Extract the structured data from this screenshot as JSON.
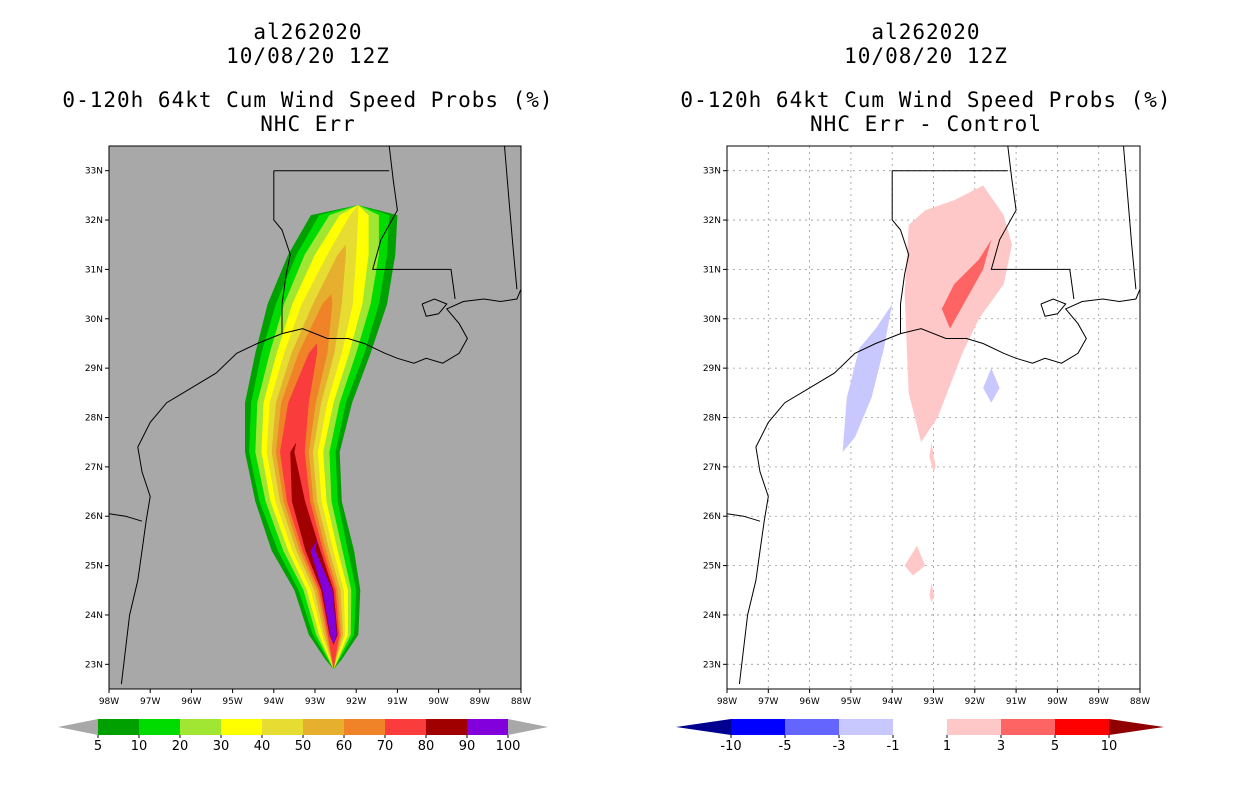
{
  "left_panel": {
    "title_line1": "al262020",
    "title_line2": "10/08/20 12Z",
    "title_line3": "0-120h 64kt Cum Wind Speed Probs (%)",
    "title_line4": "NHC Err"
  },
  "right_panel": {
    "title_line1": "al262020",
    "title_line2": "10/08/20 12Z",
    "title_line3": "0-120h 64kt Cum Wind Speed Probs (%)",
    "title_line4": "NHC Err - Control"
  },
  "chart_data": [
    {
      "type": "heatmap",
      "title": "0-120h 64kt Cum Wind Speed Probs (%) NHC Err",
      "xlim": [
        -98,
        -88
      ],
      "ylim": [
        22.5,
        33.5
      ],
      "x_ticks": [
        "98W",
        "97W",
        "96W",
        "95W",
        "94W",
        "93W",
        "92W",
        "91W",
        "90W",
        "89W",
        "88W"
      ],
      "y_ticks": [
        "23N",
        "24N",
        "25N",
        "26N",
        "27N",
        "28N",
        "29N",
        "30N",
        "31N",
        "32N",
        "33N"
      ],
      "background": "#a8a8a8",
      "levels": [
        5,
        10,
        20,
        30,
        40,
        50,
        60,
        70,
        80,
        90,
        100
      ],
      "level_labels": [
        "5",
        "10",
        "20",
        "30",
        "40",
        "50",
        "60",
        "70",
        "80",
        "90",
        "100"
      ],
      "colors": [
        "#00a000",
        "#00dc00",
        "#a0e632",
        "#ffff00",
        "#e6dc32",
        "#e6af2d",
        "#f08228",
        "#fa3c3c",
        "#a00000",
        "#8200dc"
      ],
      "track": {
        "lat": [
          23.1,
          23.6,
          24.5,
          25.3,
          26.3,
          27.3,
          28.3,
          29.3,
          30.3,
          31.3,
          32.1
        ],
        "lon": [
          -92.55,
          -92.55,
          -92.7,
          -93.05,
          -93.4,
          -93.55,
          -93.4,
          -93.05,
          -92.7,
          -92.35,
          -92.05
        ],
        "widths_deg": [
          [
            0.2,
            0.6,
            0.8,
            1.0,
            1.05,
            1.15,
            1.3,
            1.4,
            1.45,
            1.3,
            1.05
          ],
          [
            0.15,
            0.5,
            0.7,
            0.85,
            0.95,
            1.05,
            1.15,
            1.25,
            1.25,
            1.1,
            0.85
          ],
          [
            0.12,
            0.42,
            0.58,
            0.72,
            0.8,
            0.9,
            1.0,
            1.05,
            1.05,
            0.9,
            0.6
          ],
          [
            0.1,
            0.35,
            0.5,
            0.6,
            0.68,
            0.75,
            0.85,
            0.88,
            0.85,
            0.65,
            0.35
          ],
          [
            0.08,
            0.28,
            0.4,
            0.5,
            0.56,
            0.62,
            0.7,
            0.7,
            0.62,
            0.35,
            0.1
          ],
          [
            0.06,
            0.23,
            0.32,
            0.4,
            0.45,
            0.5,
            0.55,
            0.52,
            0.35,
            0.1,
            0.0
          ],
          [
            0.05,
            0.18,
            0.25,
            0.32,
            0.36,
            0.4,
            0.42,
            0.35,
            0.12,
            0.0,
            0.0
          ],
          [
            0.04,
            0.14,
            0.2,
            0.25,
            0.28,
            0.3,
            0.25,
            0.1,
            0.0,
            0.0,
            0.0
          ],
          [
            0.0,
            0.1,
            0.15,
            0.18,
            0.16,
            0.05,
            0.0,
            0.0,
            0.0,
            0.0,
            0.0
          ],
          [
            0.0,
            0.08,
            0.12,
            0.06,
            0.0,
            0.0,
            0.0,
            0.0,
            0.0,
            0.0,
            0.0
          ]
        ]
      }
    },
    {
      "type": "heatmap",
      "title": "0-120h 64kt Cum Wind Speed Probs (%) NHC Err - Control",
      "xlim": [
        -98,
        -88
      ],
      "ylim": [
        22.5,
        33.5
      ],
      "x_ticks": [
        "98W",
        "97W",
        "96W",
        "95W",
        "94W",
        "93W",
        "92W",
        "91W",
        "90W",
        "89W",
        "88W"
      ],
      "y_ticks": [
        "23N",
        "24N",
        "25N",
        "26N",
        "27N",
        "28N",
        "29N",
        "30N",
        "31N",
        "32N",
        "33N"
      ],
      "background": "#ffffff",
      "levels": [
        -10,
        -5,
        -3,
        -1,
        1,
        3,
        5,
        10
      ],
      "level_labels": [
        "-10",
        "-5",
        "-3",
        "-1",
        "1",
        "3",
        "5",
        "10"
      ],
      "colors": [
        "#000090",
        "#0000ff",
        "#6464ff",
        "#c8c8ff",
        "#ffffff",
        "#ffc8c8",
        "#ff6464",
        "#ff0000",
        "#900000"
      ],
      "regions": [
        {
          "level": 1,
          "lon": [
            -93.6,
            -93.2,
            -92.5,
            -91.8,
            -91.3,
            -91.1,
            -91.3,
            -91.9,
            -92.3,
            -92.9,
            -93.3,
            -93.6,
            -93.7
          ],
          "lat": [
            31.9,
            32.2,
            32.4,
            32.7,
            32.1,
            31.5,
            30.7,
            30.0,
            29.3,
            28.0,
            27.5,
            28.5,
            30.5
          ]
        },
        {
          "level": 3,
          "lon": [
            -92.5,
            -91.9,
            -91.6,
            -91.8,
            -92.2,
            -92.6,
            -92.8
          ],
          "lat": [
            30.7,
            31.2,
            31.6,
            31.0,
            30.4,
            29.8,
            30.2
          ]
        },
        {
          "level": 1,
          "lon": [
            -93.05,
            -92.95,
            -93.0,
            -93.1
          ],
          "lat": [
            27.5,
            27.0,
            26.9,
            27.2
          ]
        },
        {
          "level": 1,
          "lon": [
            -93.4,
            -93.2,
            -93.5,
            -93.7
          ],
          "lat": [
            25.4,
            25.0,
            24.8,
            25.0
          ]
        },
        {
          "level": 1,
          "lon": [
            -93.05,
            -92.98,
            -93.05,
            -93.1
          ],
          "lat": [
            24.65,
            24.4,
            24.25,
            24.4
          ]
        },
        {
          "level": -1,
          "lon": [
            -94.4,
            -94.0,
            -94.2,
            -94.5,
            -94.9,
            -95.2,
            -95.1,
            -94.8
          ],
          "lat": [
            29.8,
            30.3,
            29.4,
            28.4,
            27.6,
            27.3,
            28.4,
            29.4
          ]
        },
        {
          "level": -1,
          "lon": [
            -91.6,
            -91.4,
            -91.6,
            -91.8
          ],
          "lat": [
            29.0,
            28.6,
            28.3,
            28.6
          ]
        }
      ]
    }
  ]
}
